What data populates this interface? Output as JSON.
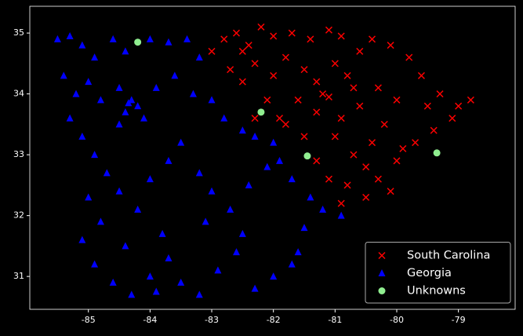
{
  "chart_data": {
    "type": "scatter",
    "xlim": [
      -85.95,
      -78.08
    ],
    "ylim": [
      30.46,
      35.44
    ],
    "xticks": [
      -85,
      -84,
      -83,
      -82,
      -81,
      -80,
      -79
    ],
    "yticks": [
      31,
      32,
      33,
      34,
      35
    ],
    "legend": "lower right",
    "series": [
      {
        "name": "South Carolina",
        "color": "#ff0000",
        "marker": "x",
        "x": [
          -83.0,
          -82.8,
          -82.6,
          -82.4,
          -82.2,
          -82.0,
          -81.7,
          -81.4,
          -81.1,
          -80.9,
          -82.7,
          -82.5,
          -82.3,
          -82.0,
          -81.8,
          -81.5,
          -81.3,
          -81.0,
          -80.8,
          -80.6,
          -80.4,
          -80.1,
          -79.8,
          -79.6,
          -79.3,
          -79.0,
          -78.8,
          -79.1,
          -79.4,
          -79.7,
          -82.1,
          -81.9,
          -81.6,
          -81.3,
          -81.1,
          -80.9,
          -80.6,
          -80.3,
          -80.0,
          -80.2,
          -81.0,
          -80.7,
          -80.5,
          -80.3,
          -80.0,
          -80.1,
          -80.5,
          -80.9,
          -81.1,
          -81.3,
          -81.5,
          -80.8,
          -79.9,
          -82.3,
          -81.8,
          -79.5,
          -80.4,
          -81.2,
          -82.5,
          -80.7
        ],
        "values": [
          34.7,
          34.9,
          35.0,
          34.8,
          35.1,
          34.95,
          35.0,
          34.9,
          35.05,
          34.95,
          34.4,
          34.2,
          34.5,
          34.3,
          34.6,
          34.4,
          34.2,
          34.5,
          34.3,
          34.7,
          34.9,
          34.8,
          34.6,
          34.3,
          34.0,
          33.8,
          33.9,
          33.6,
          33.4,
          33.2,
          33.9,
          33.6,
          33.9,
          33.7,
          33.95,
          33.6,
          33.8,
          34.1,
          33.9,
          33.5,
          33.3,
          33.0,
          32.8,
          32.6,
          32.9,
          32.4,
          32.3,
          32.2,
          32.6,
          32.9,
          33.3,
          32.5,
          33.1,
          33.6,
          33.5,
          33.8,
          33.2,
          34.0,
          34.7,
          34.1
        ]
      },
      {
        "name": "Georgia",
        "color": "#0000ff",
        "marker": "triangle",
        "x": [
          -85.5,
          -85.3,
          -85.1,
          -84.9,
          -84.6,
          -84.4,
          -84.0,
          -83.7,
          -83.4,
          -83.2,
          -85.4,
          -85.2,
          -85.0,
          -84.8,
          -84.5,
          -84.3,
          -84.4,
          -84.2,
          -84.1,
          -84.35,
          -84.5,
          -83.9,
          -83.6,
          -83.3,
          -83.0,
          -82.8,
          -82.5,
          -82.3,
          -82.0,
          -81.9,
          -85.3,
          -85.1,
          -84.9,
          -84.7,
          -84.5,
          -84.2,
          -84.0,
          -83.7,
          -83.5,
          -83.2,
          -83.0,
          -82.7,
          -82.4,
          -82.1,
          -81.7,
          -81.4,
          -81.2,
          -80.9,
          -81.5,
          -81.6,
          -85.1,
          -84.9,
          -84.6,
          -84.3,
          -84.0,
          -83.7,
          -83.5,
          -83.2,
          -82.9,
          -82.6,
          -82.3,
          -82.0,
          -81.7,
          -83.8,
          -84.4,
          -83.1,
          -82.5,
          -85.0,
          -84.8,
          -83.9
        ],
        "values": [
          34.9,
          34.95,
          34.8,
          34.6,
          34.9,
          34.7,
          34.9,
          34.85,
          34.9,
          34.6,
          34.3,
          34.0,
          34.2,
          33.9,
          34.1,
          33.9,
          33.7,
          33.8,
          33.6,
          33.85,
          33.5,
          34.1,
          34.3,
          34.0,
          33.9,
          33.6,
          33.4,
          33.3,
          33.2,
          32.9,
          33.6,
          33.3,
          33.0,
          32.7,
          32.4,
          32.1,
          32.6,
          32.9,
          33.2,
          32.7,
          32.4,
          32.1,
          32.5,
          32.8,
          32.6,
          32.3,
          32.1,
          32.0,
          31.8,
          31.4,
          31.6,
          31.2,
          30.9,
          30.7,
          31.0,
          31.3,
          30.9,
          30.7,
          31.1,
          31.4,
          30.8,
          31.0,
          31.2,
          31.7,
          31.5,
          31.9,
          31.7,
          32.3,
          31.9,
          30.75
        ]
      },
      {
        "name": "Unknowns",
        "color": "#90ee90",
        "marker": "circle",
        "x": [
          -84.2,
          -82.2,
          -81.45,
          -79.35
        ],
        "values": [
          34.85,
          33.7,
          32.98,
          33.03
        ]
      }
    ]
  }
}
